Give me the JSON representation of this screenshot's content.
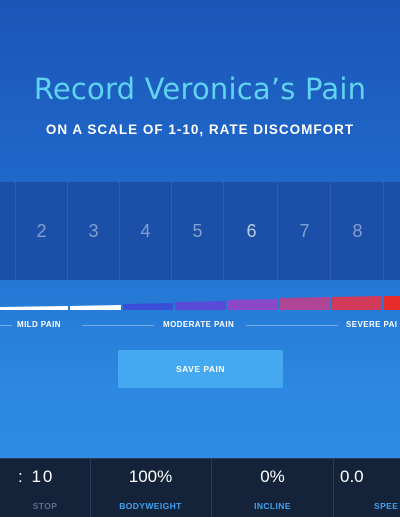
{
  "header": {
    "title": "Record Veronica’s Pain",
    "subtitle": "ON A SCALE OF 1-10, RATE DISCOMFORT"
  },
  "scale": {
    "numbers": [
      "2",
      "3",
      "4",
      "5",
      "6",
      "7",
      "8"
    ],
    "selected": "6"
  },
  "bar_colors": [
    "#ffffff",
    "#ffffff",
    "#3a4fd6",
    "#5a4ad8",
    "#8a48c8",
    "#b04596",
    "#d23a5a",
    "#e82b2b"
  ],
  "range_labels": {
    "mild": "MILD PAIN",
    "moderate": "MODERATE PAIN",
    "severe": "SEVERE PAI"
  },
  "save_button": {
    "label": "SAVE PAIN"
  },
  "footer": {
    "time": {
      "value": ": 10",
      "label": "STOP"
    },
    "bodyweight": {
      "value": "100%",
      "label": "BODYWEIGHT"
    },
    "incline": {
      "value": "0%",
      "label": "INCLINE"
    },
    "speed": {
      "value": "0.0",
      "label": "SPEE"
    }
  }
}
